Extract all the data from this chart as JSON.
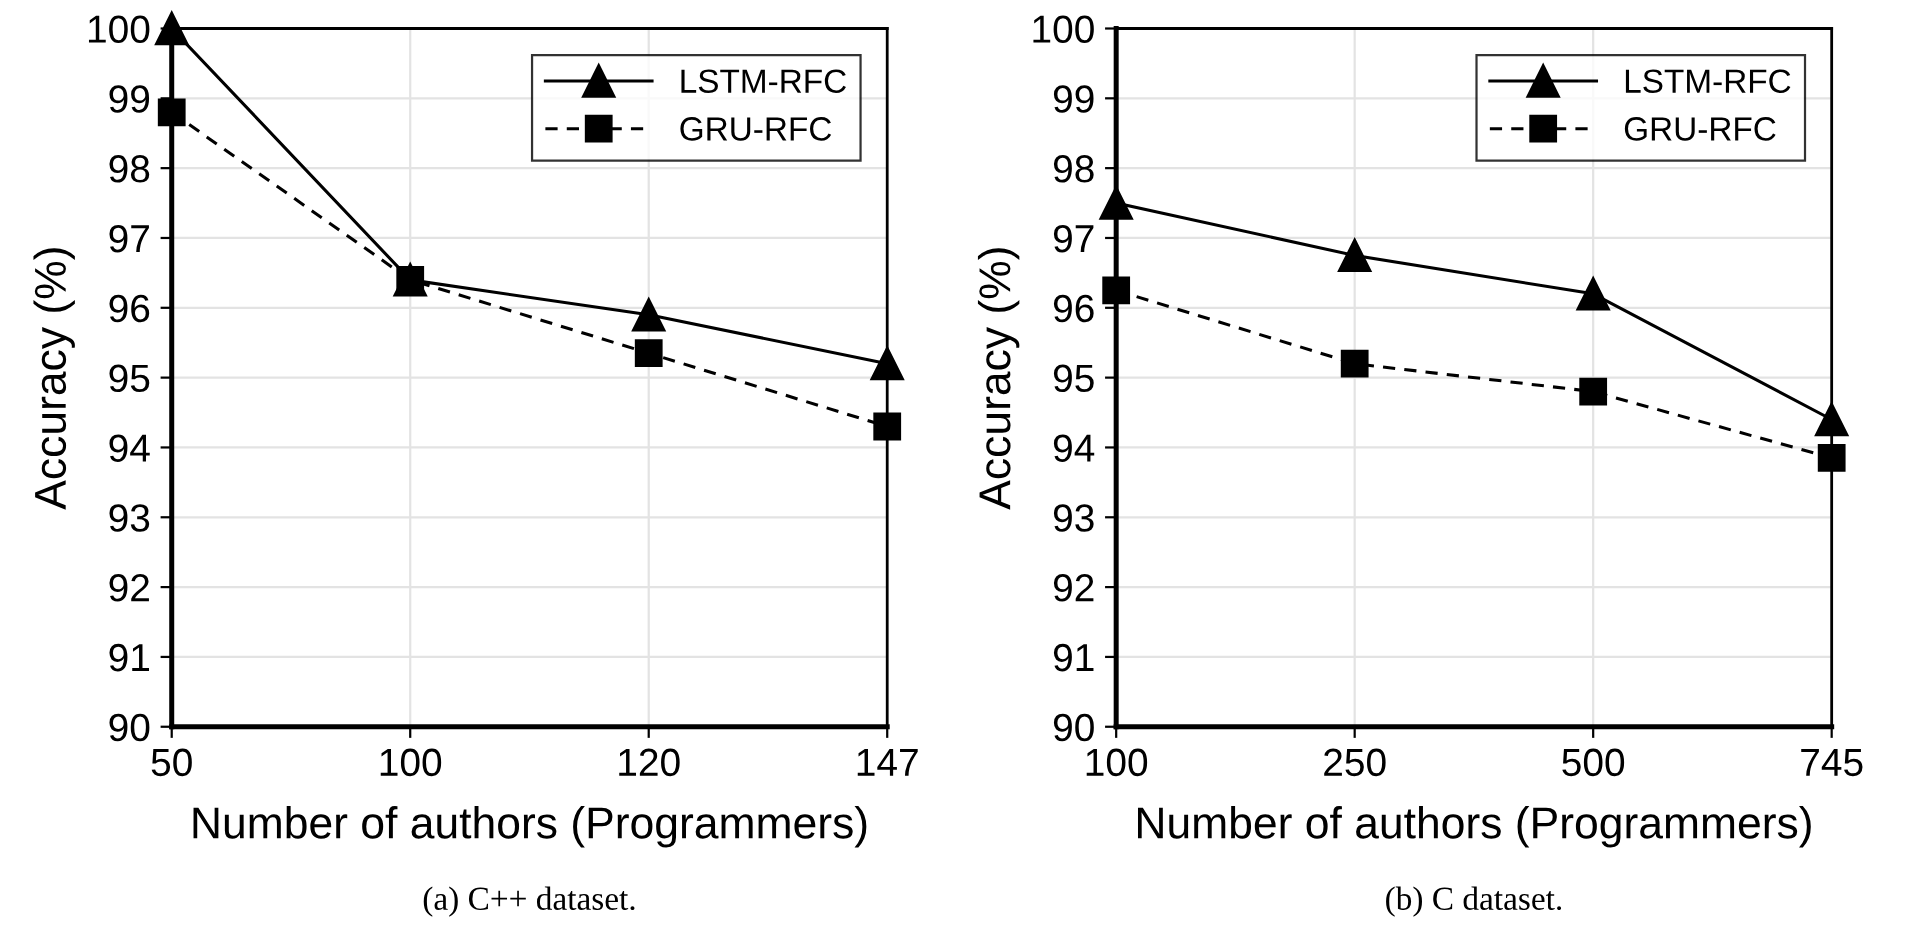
{
  "chart_data": [
    {
      "type": "line",
      "xlabel": "Number of authors (Programmers)",
      "ylabel": "Accuracy (%)",
      "categories": [
        "50",
        "100",
        "120",
        "147"
      ],
      "series": [
        {
          "name": "LSTM-RFC",
          "color": "#000000",
          "marker": "triangle",
          "line_style": "solid",
          "values": [
            100,
            96.4,
            95.9,
            95.2
          ]
        },
        {
          "name": "GRU-RFC",
          "color": "#000000",
          "marker": "square",
          "line_style": "dashed",
          "values": [
            98.8,
            96.4,
            95.35,
            94.3
          ]
        }
      ],
      "ylim": [
        90,
        100
      ],
      "yticks": [
        90,
        91,
        92,
        93,
        94,
        95,
        96,
        97,
        98,
        99,
        100
      ],
      "grid": true,
      "legend": "top right",
      "annotations": [
        "(a) C++ dataset."
      ]
    },
    {
      "type": "line",
      "xlabel": "Number of authors (Programmers)",
      "ylabel": "Accuracy (%)",
      "categories": [
        "100",
        "250",
        "500",
        "745"
      ],
      "series": [
        {
          "name": "LSTM-RFC",
          "color": "#000000",
          "marker": "triangle",
          "line_style": "solid",
          "values": [
            97.5,
            96.75,
            96.2,
            94.4
          ]
        },
        {
          "name": "GRU-RFC",
          "color": "#000000",
          "marker": "square",
          "line_style": "dashed",
          "values": [
            96.25,
            95.2,
            94.8,
            93.85
          ]
        }
      ],
      "ylim": [
        90,
        100
      ],
      "yticks": [
        90,
        91,
        92,
        93,
        94,
        95,
        96,
        97,
        98,
        99,
        100
      ],
      "grid": true,
      "legend": "top right",
      "annotations": [
        "(b) C dataset."
      ]
    }
  ]
}
